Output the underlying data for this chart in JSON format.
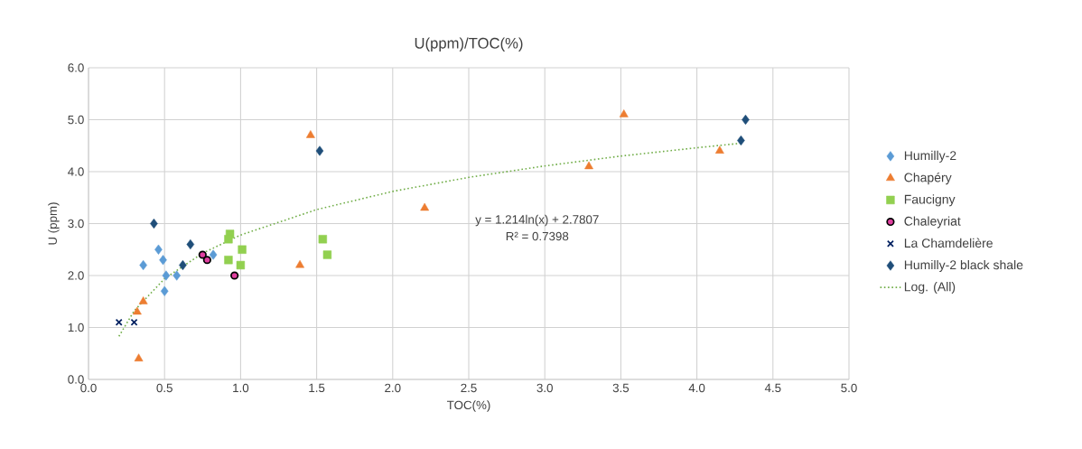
{
  "chart_data": {
    "type": "scatter",
    "title": "U(ppm)/TOC(%)",
    "xlabel": "TOC(%)",
    "ylabel": "U (ppm)",
    "xlim": [
      0,
      5
    ],
    "ylim": [
      0,
      6
    ],
    "xticks": [
      {
        "value": 0,
        "label": "0.0"
      },
      {
        "value": 0.5,
        "label": "0.5"
      },
      {
        "value": 1,
        "label": "1.0"
      },
      {
        "value": 1.5,
        "label": "1.5"
      },
      {
        "value": 2,
        "label": "2.0"
      },
      {
        "value": 2.5,
        "label": "2.5"
      },
      {
        "value": 3,
        "label": "3.0"
      },
      {
        "value": 3.5,
        "label": "3.5"
      },
      {
        "value": 4,
        "label": "4.0"
      },
      {
        "value": 4.5,
        "label": "4.5"
      },
      {
        "value": 5,
        "label": "5.0"
      }
    ],
    "yticks": [
      {
        "value": 0,
        "label": "0.0"
      },
      {
        "value": 1,
        "label": "1.0"
      },
      {
        "value": 2,
        "label": "2.0"
      },
      {
        "value": 3,
        "label": "3.0"
      },
      {
        "value": 4,
        "label": "4.0"
      },
      {
        "value": 5,
        "label": "5.0"
      },
      {
        "value": 6,
        "label": "6.0"
      }
    ],
    "grid": true,
    "legend": "right",
    "annotations": [
      "y = 1.214ln(x) + 2.7807",
      "R² = 0.7398"
    ],
    "series": [
      {
        "name": "Humilly-2",
        "color": "#5b9bd5",
        "marker": "diamond",
        "x": [
          0.36,
          0.46,
          0.49,
          0.51,
          0.5,
          0.58,
          0.82
        ],
        "values": [
          2.2,
          2.5,
          2.3,
          2.0,
          1.7,
          2.0,
          2.4
        ]
      },
      {
        "name": "Chapéry",
        "color": "#ed7d31",
        "marker": "triangle",
        "x": [
          0.33,
          0.32,
          0.36,
          0.62,
          1.39,
          1.46,
          2.21,
          3.29,
          3.52,
          4.15
        ],
        "values": [
          0.4,
          1.3,
          1.5,
          null,
          2.2,
          4.7,
          3.3,
          4.1,
          5.1,
          4.4
        ]
      },
      {
        "name": "Faucigny",
        "color": "#92d050",
        "marker": "square",
        "x": [
          0.93,
          0.92,
          0.92,
          1.01,
          1.0,
          1.54,
          1.57
        ],
        "values": [
          2.8,
          2.7,
          2.3,
          2.5,
          2.2,
          2.7,
          2.4
        ]
      },
      {
        "name": "Chaleyriat",
        "color": "#e040a0",
        "marker": "circle",
        "x": [
          0.75,
          0.78,
          0.96
        ],
        "values": [
          2.4,
          2.3,
          2.0
        ]
      },
      {
        "name": "La Chamdelière",
        "color": "#002060",
        "marker": "cross",
        "x": [
          0.2,
          0.3
        ],
        "values": [
          1.1,
          1.1
        ]
      },
      {
        "name": "Humilly-2 black shale",
        "color": "#1f4e79",
        "marker": "diamond",
        "x": [
          0.43,
          0.67,
          0.62,
          1.52,
          4.29,
          4.32
        ],
        "values": [
          3.0,
          2.6,
          2.2,
          4.4,
          4.6,
          5.0
        ]
      },
      {
        "name": "Log. (All)",
        "type": "line",
        "color": "#70ad47",
        "line_style": "dotted",
        "marker": "none",
        "x": [
          0.2,
          0.3,
          0.5,
          0.75,
          1.0,
          1.5,
          2.0,
          2.5,
          3.0,
          3.5,
          4.0,
          4.3
        ],
        "values": [
          0.83,
          1.32,
          1.94,
          2.43,
          2.78,
          3.27,
          3.62,
          3.89,
          4.11,
          4.3,
          4.46,
          4.55
        ]
      }
    ]
  }
}
